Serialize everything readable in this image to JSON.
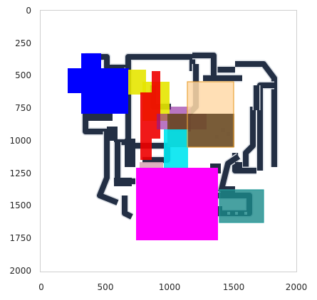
{
  "figure": {
    "background": "#ffffff",
    "axes_frame_color": "#cfcfcf",
    "map_background": "#ffffff"
  },
  "axes": {
    "x_ticks": [
      "0",
      "500",
      "1000",
      "1500",
      "2000"
    ],
    "y_ticks": [
      "0",
      "250",
      "500",
      "750",
      "1000",
      "1250",
      "1500",
      "1750",
      "2000"
    ],
    "x_range": [
      0,
      2000
    ],
    "y_range": [
      2000,
      0
    ]
  },
  "map": {
    "wall_color": "#232f44",
    "wall_outline": "#d9dde3",
    "floor_color": "#ffffff",
    "furniture_color": "#e9ecef"
  },
  "overlays": [
    {
      "label": "blue-region",
      "color": "#0000ff",
      "opacity": 1.0
    },
    {
      "label": "yellow-region",
      "color": "#e6e600",
      "opacity": 0.9
    },
    {
      "label": "red-region",
      "color": "#ee0000",
      "opacity": 0.9
    },
    {
      "label": "purple-region",
      "color": "#8a1a9a",
      "opacity": 0.6
    },
    {
      "label": "peach-region",
      "color": "#ffd9a8",
      "opacity": 0.85
    },
    {
      "label": "brown-region",
      "color": "#6a4a22",
      "opacity": 0.9
    },
    {
      "label": "cyan-region",
      "color": "#00e5f0",
      "opacity": 0.9
    },
    {
      "label": "pink-region",
      "color": "#d7a5b4",
      "opacity": 0.85
    },
    {
      "label": "magenta-region",
      "color": "#ff00ff",
      "opacity": 1.0
    },
    {
      "label": "teal-region",
      "color": "#1a8a8a",
      "opacity": 0.8
    }
  ]
}
